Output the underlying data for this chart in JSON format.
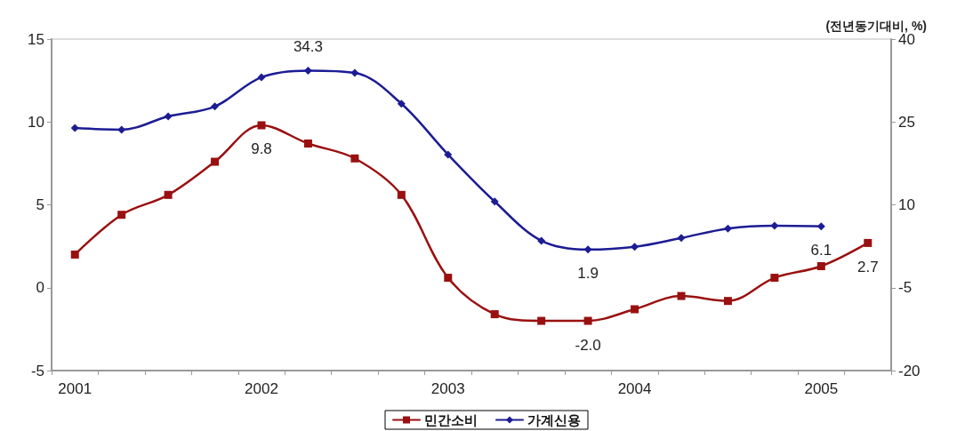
{
  "chart_data": {
    "type": "line",
    "y2label": "(전년동기대비, %)",
    "categories": [
      "2001",
      null,
      null,
      null,
      "2002",
      null,
      null,
      null,
      "2003",
      null,
      null,
      null,
      "2004",
      null,
      null,
      null,
      "2005",
      null
    ],
    "series": [
      {
        "name": "민간소비",
        "color": "#9a1010",
        "marker": "square",
        "values": [
          2.0,
          4.4,
          5.6,
          7.6,
          9.8,
          8.7,
          7.8,
          5.6,
          0.6,
          -1.6,
          -2.0,
          -2.0,
          -1.3,
          -0.5,
          -0.8,
          0.6,
          1.3,
          2.7
        ],
        "value_labels": [
          null,
          null,
          null,
          null,
          "9.8",
          null,
          null,
          null,
          null,
          null,
          null,
          "-2.0",
          null,
          null,
          null,
          null,
          null,
          "2.7"
        ]
      },
      {
        "name": "가계신용",
        "color": "#1c1c94",
        "marker": "diamond",
        "axis": "y2",
        "values": [
          23.9,
          23.6,
          26.0,
          27.8,
          33.1,
          34.3,
          33.9,
          28.3,
          19.1,
          10.6,
          3.5,
          1.9,
          2.4,
          4.0,
          5.7,
          6.2,
          6.1,
          null
        ],
        "value_labels": [
          null,
          null,
          null,
          null,
          null,
          "34.3",
          null,
          null,
          null,
          null,
          null,
          "1.9",
          null,
          null,
          null,
          null,
          "6.1",
          null
        ]
      }
    ],
    "ylim": [
      -5,
      15
    ],
    "yticks": [
      -5,
      0,
      5,
      10,
      15
    ],
    "y2lim": [
      -20,
      40
    ],
    "y2ticks": [
      -20,
      -5,
      10,
      25,
      40
    ],
    "grid": false,
    "legend": "bottom",
    "line_style": "solid"
  }
}
